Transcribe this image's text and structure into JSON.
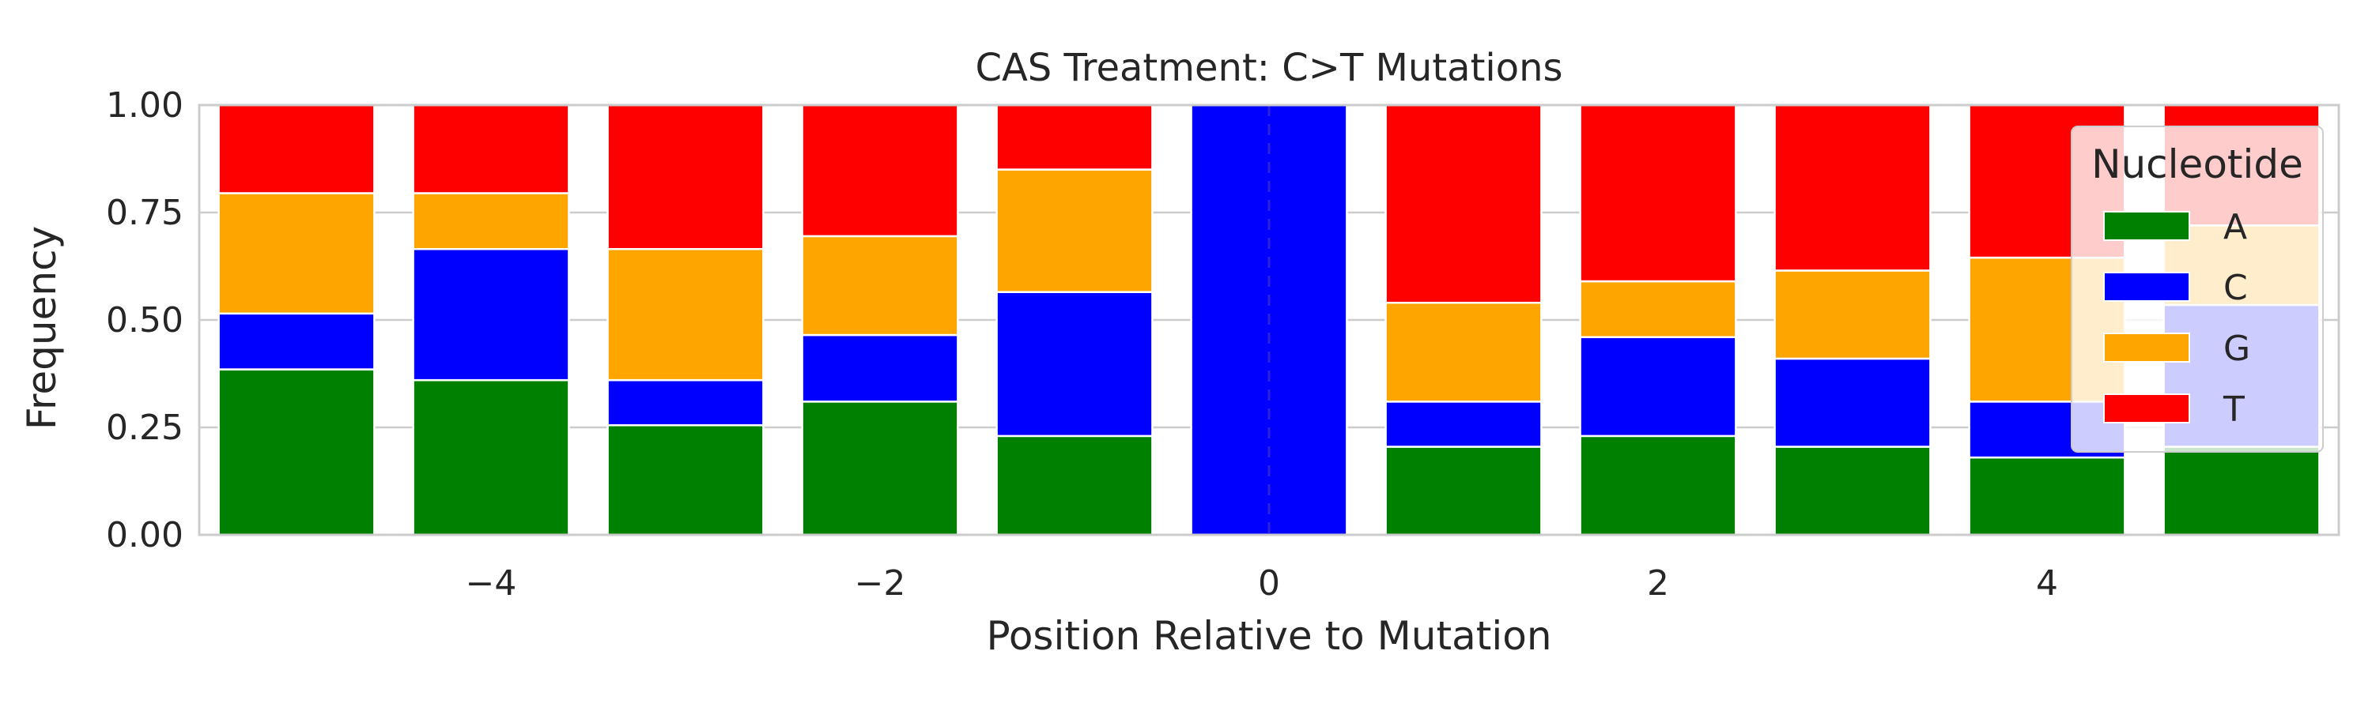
{
  "chart_data": {
    "type": "bar",
    "stacked": true,
    "title": "CAS Treatment: C>T Mutations",
    "xlabel": "Position Relative to Mutation",
    "ylabel": "Frequency",
    "x": [
      -5,
      -4,
      -3,
      -2,
      -1,
      0,
      1,
      2,
      3,
      4,
      5
    ],
    "xlim": [
      -5.5,
      5.5
    ],
    "ylim": [
      0,
      1
    ],
    "xticks": [
      -4,
      -2,
      0,
      2,
      4
    ],
    "xtick_labels": [
      "−4",
      "−2",
      "0",
      "2",
      "4"
    ],
    "yticks": [
      0,
      0.25,
      0.5,
      0.75,
      1
    ],
    "ytick_labels": [
      "0.00",
      "0.25",
      "0.50",
      "0.75",
      "1.00"
    ],
    "grid": "horizontal",
    "reference_line": {
      "x": 0,
      "style": "dashed"
    },
    "legend": {
      "title": "Nucleotide",
      "placement": "upper right"
    },
    "series": [
      {
        "name": "A",
        "color": "#008000",
        "values": [
          0.385,
          0.36,
          0.255,
          0.31,
          0.23,
          0.0,
          0.205,
          0.23,
          0.205,
          0.18,
          0.205
        ]
      },
      {
        "name": "C",
        "color": "#0000ff",
        "values": [
          0.13,
          0.305,
          0.105,
          0.155,
          0.335,
          1.0,
          0.105,
          0.23,
          0.205,
          0.13,
          0.33
        ]
      },
      {
        "name": "G",
        "color": "#ffa500",
        "values": [
          0.28,
          0.13,
          0.305,
          0.23,
          0.285,
          0.0,
          0.23,
          0.13,
          0.205,
          0.335,
          0.185
        ]
      },
      {
        "name": "T",
        "color": "#ff0000",
        "values": [
          0.205,
          0.205,
          0.335,
          0.305,
          0.15,
          0.0,
          0.46,
          0.41,
          0.385,
          0.355,
          0.28
        ]
      }
    ]
  }
}
